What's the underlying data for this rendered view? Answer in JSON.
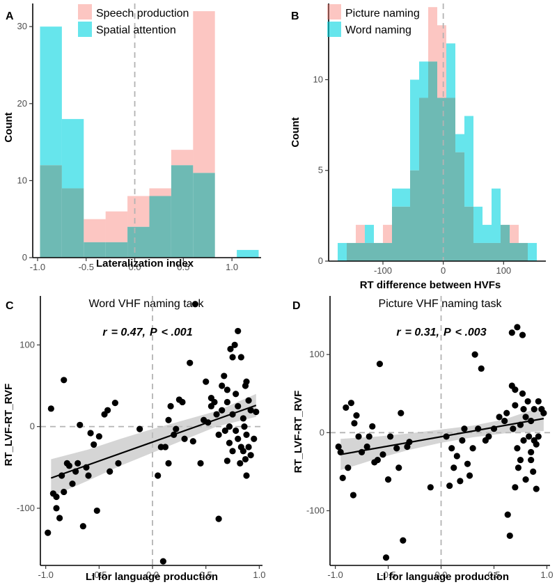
{
  "colors": {
    "pink": "#F8766D",
    "cyan": "#00D4E0",
    "overlap": "#6EBAB4",
    "dot": "#000000",
    "ci": "#BFBFBF",
    "dash": "#B3B3B3"
  },
  "chart_data": [
    {
      "panel": "A",
      "type": "bar",
      "title": "",
      "xlabel": "Lateralization index",
      "ylabel": "Count",
      "xlim": [
        -1.05,
        1.3
      ],
      "ylim": [
        0,
        33
      ],
      "xticks": [
        "-1.0",
        "-0.5",
        "0.0",
        "0.5",
        "1.0"
      ],
      "xtick_values": [
        -1.0,
        -0.5,
        0.0,
        0.5,
        1.0
      ],
      "yticks": [
        "0",
        "10",
        "20",
        "30"
      ],
      "ytick_values": [
        0,
        10,
        20,
        30
      ],
      "bin_edges": [
        -0.975,
        -0.75,
        -0.525,
        -0.3,
        -0.075,
        0.15,
        0.375,
        0.6,
        0.825,
        1.05,
        1.275
      ],
      "legend": [
        "Speech production",
        "Spatial attention"
      ],
      "series": [
        {
          "name": "Speech production",
          "values": [
            12,
            9,
            5,
            6,
            8,
            9,
            14,
            32,
            0,
            0
          ]
        },
        {
          "name": "Spatial attention",
          "values": [
            30,
            18,
            2,
            2,
            4,
            8,
            12,
            11,
            0,
            1
          ]
        }
      ]
    },
    {
      "panel": "B",
      "type": "bar",
      "title": "",
      "xlabel": "RT difference between HVFs",
      "ylabel": "Count",
      "xlim": [
        -190,
        170
      ],
      "ylim": [
        0,
        14.2
      ],
      "xticks": [
        "-100",
        "0",
        "100"
      ],
      "xtick_values": [
        -100,
        0,
        100
      ],
      "yticks": [
        "0",
        "5",
        "10"
      ],
      "ytick_values": [
        0,
        5,
        10
      ],
      "bin_edges": [
        -175,
        -160,
        -145,
        -130,
        -115,
        -100,
        -85,
        -70,
        -55,
        -40,
        -25,
        -10,
        5,
        20,
        35,
        50,
        65,
        80,
        95,
        110,
        125,
        140,
        155
      ],
      "legend": [
        "Picture naming",
        "Word naming"
      ],
      "series": [
        {
          "name": "Picture naming",
          "values": [
            0,
            1,
            2,
            1,
            1,
            2,
            3,
            3,
            5,
            9,
            14,
            13,
            9,
            6,
            3,
            1,
            1,
            1,
            2,
            2,
            1,
            0
          ]
        },
        {
          "name": "Word naming",
          "values": [
            1,
            1,
            1,
            2,
            1,
            1,
            4,
            4,
            10,
            11,
            11,
            9,
            12,
            7,
            8,
            3,
            2,
            4,
            2,
            1,
            1,
            1
          ]
        }
      ]
    },
    {
      "panel": "C",
      "type": "scatter",
      "title": "Word VHF naming task",
      "xlabel": "LI for language production",
      "ylabel": "RT_LVF-RT_RVF",
      "stat": {
        "r_label": "r",
        "r_value": "= 0.47,",
        "p_label": "P",
        "p_value": "< .001"
      },
      "xlim": [
        -1.05,
        1.03
      ],
      "ylim": [
        -170,
        160
      ],
      "xticks": [
        "-1.0",
        "-0.5",
        "0.0",
        "0.5",
        "1.0"
      ],
      "xtick_values": [
        -1.0,
        -0.5,
        0.0,
        0.5,
        1.0
      ],
      "yticks": [
        "-100",
        "0",
        "100"
      ],
      "ytick_values": [
        -100,
        0,
        100
      ],
      "fit": {
        "x0": -0.95,
        "y0": -63,
        "x1": 0.97,
        "y1": 26
      },
      "ci_band": {
        "x": [
          -0.95,
          -0.6,
          -0.3,
          0.0,
          0.3,
          0.6,
          0.97
        ],
        "upper": [
          -40,
          -28,
          -15,
          -3,
          8,
          19,
          40
        ],
        "lower": [
          -86,
          -66,
          -48,
          -32,
          -16,
          0,
          12
        ]
      },
      "points": [
        [
          -0.98,
          -130
        ],
        [
          -0.95,
          22
        ],
        [
          -0.93,
          -82
        ],
        [
          -0.9,
          -86
        ],
        [
          -0.9,
          -100
        ],
        [
          -0.87,
          -112
        ],
        [
          -0.85,
          -60
        ],
        [
          -0.83,
          57
        ],
        [
          -0.83,
          -80
        ],
        [
          -0.8,
          -45
        ],
        [
          -0.78,
          -48
        ],
        [
          -0.75,
          -70
        ],
        [
          -0.72,
          -55
        ],
        [
          -0.7,
          -45
        ],
        [
          -0.68,
          2
        ],
        [
          -0.65,
          -122
        ],
        [
          -0.62,
          -50
        ],
        [
          -0.6,
          -60
        ],
        [
          -0.58,
          -8
        ],
        [
          -0.55,
          -22
        ],
        [
          -0.52,
          -103
        ],
        [
          -0.5,
          -12
        ],
        [
          -0.45,
          15
        ],
        [
          -0.42,
          20
        ],
        [
          -0.4,
          -55
        ],
        [
          -0.35,
          29
        ],
        [
          -0.32,
          -45
        ],
        [
          -0.12,
          -3
        ],
        [
          0.05,
          -60
        ],
        [
          0.08,
          -25
        ],
        [
          0.1,
          -165
        ],
        [
          0.12,
          -25
        ],
        [
          0.15,
          -45
        ],
        [
          0.15,
          8
        ],
        [
          0.17,
          25
        ],
        [
          0.2,
          -10
        ],
        [
          0.22,
          -3
        ],
        [
          0.25,
          33
        ],
        [
          0.28,
          30
        ],
        [
          0.3,
          -15
        ],
        [
          0.35,
          78
        ],
        [
          0.38,
          -18
        ],
        [
          0.4,
          150
        ],
        [
          0.45,
          -45
        ],
        [
          0.48,
          8
        ],
        [
          0.5,
          55
        ],
        [
          0.52,
          5
        ],
        [
          0.55,
          25
        ],
        [
          0.55,
          35
        ],
        [
          0.58,
          30
        ],
        [
          0.6,
          15
        ],
        [
          0.62,
          -10
        ],
        [
          0.62,
          -113
        ],
        [
          0.65,
          50
        ],
        [
          0.65,
          20
        ],
        [
          0.68,
          -5
        ],
        [
          0.7,
          45
        ],
        [
          0.7,
          30
        ],
        [
          0.72,
          0
        ],
        [
          0.72,
          -20
        ],
        [
          0.73,
          95
        ],
        [
          0.75,
          15
        ],
        [
          0.75,
          -30
        ],
        [
          0.77,
          100
        ],
        [
          0.78,
          40
        ],
        [
          0.78,
          -5
        ],
        [
          0.8,
          25
        ],
        [
          0.8,
          -15
        ],
        [
          0.82,
          -45
        ],
        [
          0.83,
          85
        ],
        [
          0.83,
          -25
        ],
        [
          0.85,
          10
        ],
        [
          0.85,
          -30
        ],
        [
          0.86,
          0
        ],
        [
          0.87,
          50
        ],
        [
          0.88,
          -10
        ],
        [
          0.88,
          55
        ],
        [
          0.9,
          32
        ],
        [
          0.9,
          -25
        ],
        [
          0.92,
          20
        ],
        [
          0.92,
          -35
        ],
        [
          0.95,
          -15
        ],
        [
          0.97,
          18
        ],
        [
          0.87,
          -40
        ],
        [
          0.8,
          117
        ],
        [
          0.75,
          85
        ],
        [
          0.7,
          -42
        ],
        [
          0.67,
          62
        ],
        [
          0.88,
          -60
        ]
      ]
    },
    {
      "panel": "D",
      "type": "scatter",
      "title": "Picture VHF naming task",
      "xlabel": "LI for language production",
      "ylabel": "RT_LVF-RT_RVF",
      "stat": {
        "r_label": "r",
        "r_value": "= 0.31,",
        "p_label": "P",
        "p_value": "< .003"
      },
      "xlim": [
        -1.05,
        1.03
      ],
      "ylim": [
        -170,
        175
      ],
      "xticks": [
        "-1.0",
        "-0.5",
        "0.0",
        "0.5",
        "1.0"
      ],
      "xtick_values": [
        -1.0,
        -0.5,
        0.0,
        0.5,
        1.0
      ],
      "yticks": [
        "-100",
        "0",
        "100"
      ],
      "ytick_values": [
        -100,
        0,
        100
      ],
      "fit": {
        "x0": -0.95,
        "y0": -28,
        "x1": 0.97,
        "y1": 18
      },
      "ci_band": {
        "x": [
          -0.95,
          -0.6,
          -0.3,
          0.0,
          0.3,
          0.6,
          0.97
        ],
        "upper": [
          -8,
          -5,
          -1,
          4,
          9,
          17,
          34
        ],
        "lower": [
          -48,
          -33,
          -22,
          -13,
          -6,
          -1,
          2
        ]
      },
      "points": [
        [
          -0.97,
          -18
        ],
        [
          -0.95,
          -25
        ],
        [
          -0.93,
          -58
        ],
        [
          -0.9,
          32
        ],
        [
          -0.88,
          -45
        ],
        [
          -0.85,
          38
        ],
        [
          -0.83,
          -80
        ],
        [
          -0.82,
          12
        ],
        [
          -0.8,
          22
        ],
        [
          -0.78,
          -5
        ],
        [
          -0.75,
          -25
        ],
        [
          -0.7,
          -18
        ],
        [
          -0.68,
          -5
        ],
        [
          -0.65,
          8
        ],
        [
          -0.63,
          -38
        ],
        [
          -0.6,
          -35
        ],
        [
          -0.58,
          88
        ],
        [
          -0.55,
          -28
        ],
        [
          -0.52,
          -160
        ],
        [
          -0.5,
          -60
        ],
        [
          -0.48,
          -5
        ],
        [
          -0.42,
          -20
        ],
        [
          -0.4,
          -45
        ],
        [
          -0.38,
          25
        ],
        [
          -0.36,
          -138
        ],
        [
          -0.32,
          -18
        ],
        [
          -0.3,
          -12
        ],
        [
          -0.1,
          -70
        ],
        [
          0.05,
          -5
        ],
        [
          0.08,
          -68
        ],
        [
          0.1,
          -20
        ],
        [
          0.12,
          -45
        ],
        [
          0.15,
          -30
        ],
        [
          0.18,
          -62
        ],
        [
          0.2,
          -10
        ],
        [
          0.22,
          5
        ],
        [
          0.25,
          -40
        ],
        [
          0.27,
          -55
        ],
        [
          0.3,
          -20
        ],
        [
          0.32,
          100
        ],
        [
          0.35,
          5
        ],
        [
          0.38,
          82
        ],
        [
          0.42,
          -10
        ],
        [
          0.45,
          -5
        ],
        [
          0.5,
          5
        ],
        [
          0.55,
          20
        ],
        [
          0.6,
          15
        ],
        [
          0.62,
          25
        ],
        [
          0.63,
          -105
        ],
        [
          0.65,
          -132
        ],
        [
          0.67,
          60
        ],
        [
          0.67,
          128
        ],
        [
          0.68,
          5
        ],
        [
          0.7,
          55
        ],
        [
          0.7,
          35
        ],
        [
          0.72,
          135
        ],
        [
          0.72,
          -20
        ],
        [
          0.73,
          -45
        ],
        [
          0.75,
          10
        ],
        [
          0.75,
          -35
        ],
        [
          0.77,
          50
        ],
        [
          0.77,
          125
        ],
        [
          0.78,
          -10
        ],
        [
          0.8,
          20
        ],
        [
          0.8,
          -60
        ],
        [
          0.82,
          40
        ],
        [
          0.83,
          -5
        ],
        [
          0.85,
          -25
        ],
        [
          0.85,
          15
        ],
        [
          0.87,
          -50
        ],
        [
          0.88,
          -10
        ],
        [
          0.88,
          30
        ],
        [
          0.9,
          -15
        ],
        [
          0.92,
          40
        ],
        [
          0.92,
          -5
        ],
        [
          0.95,
          30
        ],
        [
          0.97,
          25
        ],
        [
          0.9,
          -72
        ],
        [
          0.7,
          -70
        ],
        [
          0.78,
          30
        ],
        [
          0.85,
          -35
        ]
      ]
    }
  ]
}
